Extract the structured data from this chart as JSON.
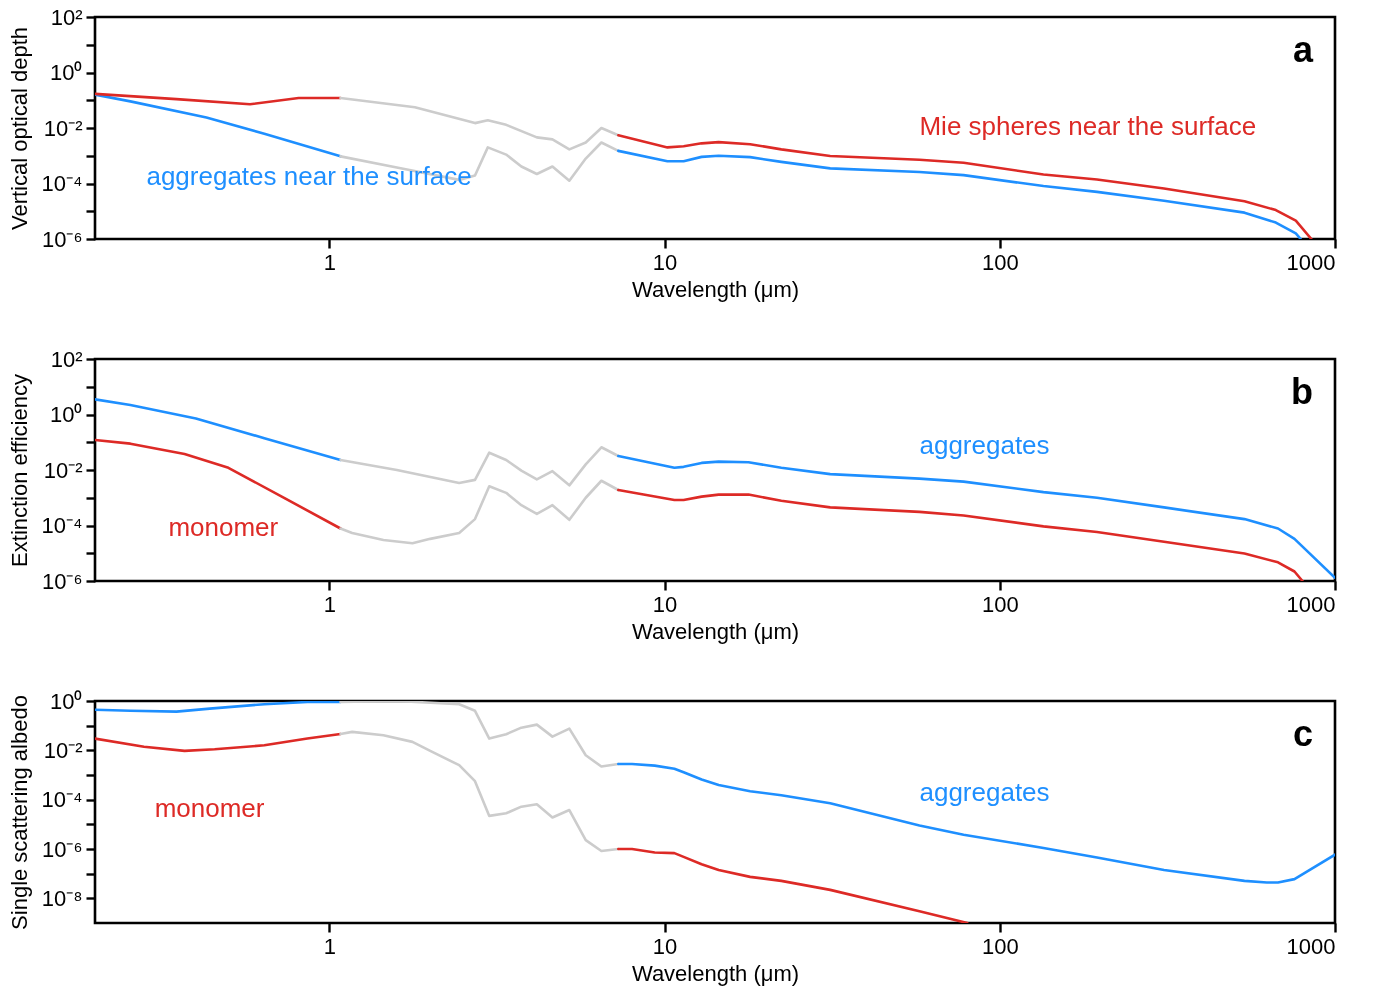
{
  "chart_data": [
    {
      "type": "line",
      "xlabel": "Wavelength (μm)",
      "ylabel": "Vertical optical depth",
      "log": "xy",
      "xlim": [
        0.2,
        1000
      ],
      "xticks": [
        1,
        10,
        100,
        1000
      ],
      "ylim": [
        1e-06,
        100
      ],
      "yticks": [
        {
          "value": 100,
          "label": "10²"
        },
        {
          "value": 10,
          "label": null
        },
        {
          "value": 1,
          "label": "10⁰"
        },
        {
          "value": 0.1,
          "label": null
        },
        {
          "value": 0.01,
          "label": "10⁻²"
        },
        {
          "value": 0.001,
          "label": null
        },
        {
          "value": 0.0001,
          "label": "10⁻⁴"
        },
        {
          "value": 1e-05,
          "label": null
        },
        {
          "value": 1e-06,
          "label": "10⁻⁶"
        }
      ],
      "series": [
        {
          "name": "aggregates near the surface",
          "color": "#1e8fff",
          "x": [
            0.2,
            0.255,
            0.43,
            0.64,
            1.08
          ],
          "values": [
            0.16,
            0.091,
            0.024,
            0.0062,
            0.00095
          ]
        },
        {
          "color": "#cccccc",
          "x": [
            1.08,
            1.59,
            2.44,
            2.72,
            2.97,
            3.37,
            3.74,
            4.16,
            4.63,
            5.2,
            5.82,
            6.48,
            7.28
          ],
          "values": [
            0.00095,
            0.00038,
            0.000135,
            0.000195,
            0.002,
            0.0011,
            0.00041,
            0.00022,
            0.00041,
            0.000126,
            0.00079,
            0.003,
            0.0015
          ]
        },
        {
          "color": "#1e8fff",
          "x": [
            7.28,
            10.2,
            11.4,
            12.9,
            14.5,
            18,
            22.3,
            31.2,
            57.6,
            78,
            135,
            195,
            309,
            537,
            666,
            764,
            790
          ],
          "values": [
            0.0015,
            0.00063,
            0.00063,
            0.00091,
            0.001,
            0.00089,
            0.0006,
            0.00035,
            0.00026,
            0.0002,
            8.1e-05,
            5e-05,
            2.4e-05,
            8.9e-06,
            3.9e-06,
            1.6e-06,
            1e-06
          ]
        },
        {
          "color": "#dd2a26",
          "x": [
            0.2,
            0.35,
            0.58,
            0.81,
            1.08
          ],
          "values": [
            0.17,
            0.11,
            0.072,
            0.12,
            0.12
          ]
        },
        {
          "color": "#cccccc",
          "x": [
            1.08,
            1.8,
            2.72,
            2.97,
            3.37,
            4.16,
            4.63,
            5.2,
            5.82,
            6.48,
            7.28
          ],
          "values": [
            0.12,
            0.056,
            0.015,
            0.019,
            0.013,
            0.0046,
            0.0039,
            0.0017,
            0.003,
            0.01,
            0.0055
          ]
        },
        {
          "name": "Mie spheres near the surface",
          "color": "#dd2a26",
          "x": [
            7.28,
            10.2,
            11.4,
            12.9,
            14.5,
            18,
            22.3,
            31.2,
            57.6,
            78,
            135,
            195,
            309,
            537,
            666,
            764,
            850
          ],
          "values": [
            0.0055,
            0.002,
            0.0022,
            0.0028,
            0.0031,
            0.0026,
            0.0017,
            0.00098,
            0.00072,
            0.00056,
            0.00021,
            0.00014,
            6.6e-05,
            2.3e-05,
            1.1e-05,
            4.6e-06,
            1e-06
          ]
        }
      ],
      "annotations": [
        "a"
      ]
    },
    {
      "type": "line",
      "xlabel": "Wavelength (μm)",
      "ylabel": "Extinction efficiency",
      "log": "xy",
      "xlim": [
        0.2,
        1000
      ],
      "xticks": [
        1,
        10,
        100,
        1000
      ],
      "ylim": [
        1e-06,
        100
      ],
      "yticks": [
        {
          "value": 100,
          "label": "10²"
        },
        {
          "value": 10,
          "label": null
        },
        {
          "value": 1,
          "label": "10⁰"
        },
        {
          "value": 0.1,
          "label": null
        },
        {
          "value": 0.01,
          "label": "10⁻²"
        },
        {
          "value": 0.001,
          "label": null
        },
        {
          "value": 0.0001,
          "label": "10⁻⁴"
        },
        {
          "value": 1e-05,
          "label": null
        },
        {
          "value": 1e-06,
          "label": "10⁻⁶"
        }
      ],
      "series": [
        {
          "color": "#1e8fff",
          "x": [
            0.2,
            0.255,
            0.4,
            0.64,
            1.08
          ],
          "values": [
            3.5,
            2.2,
            0.72,
            0.14,
            0.023
          ]
        },
        {
          "color": "#cccccc",
          "x": [
            1.08,
            1.59,
            2.44,
            2.72,
            3.0,
            3.37,
            3.74,
            4.16,
            4.63,
            5.2,
            5.82,
            6.48,
            7.28
          ],
          "values": [
            0.023,
            0.01,
            0.0034,
            0.0044,
            0.042,
            0.023,
            0.0095,
            0.0046,
            0.0091,
            0.0028,
            0.016,
            0.066,
            0.032
          ]
        },
        {
          "name": "aggregates",
          "color": "#1e8fff",
          "x": [
            7.28,
            10.7,
            11.4,
            12.9,
            14.5,
            17.8,
            22.3,
            31.2,
            57.6,
            78,
            135,
            195,
            309,
            537,
            676,
            757,
            1000
          ],
          "values": [
            0.032,
            0.012,
            0.013,
            0.018,
            0.02,
            0.019,
            0.012,
            0.0071,
            0.0049,
            0.0038,
            0.0016,
            0.001,
            0.00045,
            0.00017,
            7.8e-05,
            3.3e-05,
            1.3e-06
          ]
        },
        {
          "name": "monomer",
          "color": "#dd2a26",
          "x": [
            0.2,
            0.255,
            0.37,
            0.5,
            0.74,
            1.08
          ],
          "values": [
            0.12,
            0.089,
            0.038,
            0.012,
            0.00093,
            7.8e-05
          ]
        },
        {
          "color": "#cccccc",
          "x": [
            1.08,
            1.17,
            1.45,
            1.77,
            2.0,
            2.44,
            2.72,
            3.0,
            3.37,
            3.74,
            4.16,
            4.63,
            5.2,
            5.82,
            6.48,
            7.28
          ],
          "values": [
            7.8e-05,
            5.4e-05,
            3e-05,
            2.3e-05,
            3.3e-05,
            5.4e-05,
            0.00017,
            0.0026,
            0.0015,
            0.00054,
            0.00026,
            0.00054,
            0.00016,
            0.001,
            0.0041,
            0.0019
          ]
        },
        {
          "color": "#dd2a26",
          "x": [
            7.28,
            10.7,
            11.4,
            12.9,
            14.5,
            17.8,
            22.3,
            31.2,
            57.6,
            78,
            135,
            195,
            309,
            537,
            676,
            757,
            800
          ],
          "values": [
            0.0019,
            0.00083,
            0.00083,
            0.0011,
            0.0013,
            0.0013,
            0.00078,
            0.00045,
            0.00031,
            0.00023,
            9.3e-05,
            5.8e-05,
            2.6e-05,
            9.8e-06,
            4.7e-06,
            2.2e-06,
            1e-06
          ]
        }
      ],
      "annotations": [
        "b"
      ]
    },
    {
      "type": "line",
      "xlabel": "Wavelength (μm)",
      "ylabel": "Single scattering albedo",
      "log": "xy",
      "xlim": [
        0.2,
        1000
      ],
      "xticks": [
        1,
        10,
        100,
        1000
      ],
      "ylim": [
        1e-09,
        1
      ],
      "yticks": [
        {
          "value": 1,
          "label": "10⁰"
        },
        {
          "value": 0.1,
          "label": null
        },
        {
          "value": 0.01,
          "label": "10⁻²"
        },
        {
          "value": 0.001,
          "label": null
        },
        {
          "value": 0.0001,
          "label": "10⁻⁴"
        },
        {
          "value": 1e-05,
          "label": null
        },
        {
          "value": 1e-06,
          "label": "10⁻⁶"
        },
        {
          "value": 1e-07,
          "label": null
        },
        {
          "value": 1e-08,
          "label": "10⁻⁸"
        }
      ],
      "series": [
        {
          "color": "#1e8fff",
          "x": [
            0.2,
            0.255,
            0.35,
            0.44,
            0.64,
            0.86,
            1.08
          ],
          "values": [
            0.44,
            0.4,
            0.37,
            0.49,
            0.74,
            0.91,
            0.91
          ]
        },
        {
          "color": "#cccccc",
          "x": [
            1.08,
            1.59,
            2.44,
            2.72,
            3.0,
            3.37,
            3.74,
            4.16,
            4.63,
            5.2,
            5.82,
            6.48,
            7.28
          ],
          "values": [
            0.91,
            1,
            0.74,
            0.4,
            0.03,
            0.045,
            0.083,
            0.11,
            0.036,
            0.076,
            0.0063,
            0.0022,
            0.0028
          ]
        },
        {
          "name": "aggregates",
          "color": "#1e8fff",
          "x": [
            7.28,
            8.0,
            9.35,
            10.7,
            11.4,
            12.9,
            14.5,
            18,
            22.3,
            31.2,
            57.6,
            78,
            135,
            195,
            309,
            537,
            626,
            676,
            757,
            1000
          ],
          "values": [
            0.0028,
            0.0028,
            0.0024,
            0.0018,
            0.0013,
            0.00066,
            0.00039,
            0.00022,
            0.00015,
            7.1e-05,
            8.9e-06,
            3.8e-06,
            1.1e-06,
            4.5e-07,
            1.4e-07,
            5.1e-08,
            4.4e-08,
            4.4e-08,
            6e-08,
            5.9e-07
          ]
        },
        {
          "name": "monomer",
          "color": "#dd2a26",
          "x": [
            0.2,
            0.28,
            0.37,
            0.455,
            0.64,
            0.86,
            1.08
          ],
          "values": [
            0.03,
            0.014,
            0.0095,
            0.011,
            0.016,
            0.03,
            0.046
          ]
        },
        {
          "color": "#cccccc",
          "x": [
            1.08,
            1.17,
            1.45,
            1.77,
            2.0,
            2.44,
            2.72,
            3.0,
            3.37,
            3.74,
            4.16,
            4.63,
            5.2,
            5.82,
            6.48,
            7.28
          ],
          "values": [
            0.046,
            0.056,
            0.041,
            0.022,
            0.0095,
            0.0025,
            0.00056,
            2.2e-05,
            2.8e-05,
            5.2e-05,
            6.5e-05,
            1.9e-05,
            3.8e-05,
            2.3e-06,
            8.3e-07,
            1e-06
          ]
        },
        {
          "color": "#dd2a26",
          "x": [
            7.28,
            8.0,
            9.35,
            10.7,
            11.4,
            12.9,
            14.5,
            18,
            22.3,
            31.2,
            57.6,
            80
          ],
          "values": [
            1e-06,
            1e-06,
            7.2e-07,
            6.8e-07,
            4.8e-07,
            2.4e-07,
            1.4e-07,
            7.4e-08,
            5.1e-08,
            2.2e-08,
            3e-09,
            1e-09
          ]
        }
      ],
      "annotations": [
        "c"
      ]
    }
  ]
}
